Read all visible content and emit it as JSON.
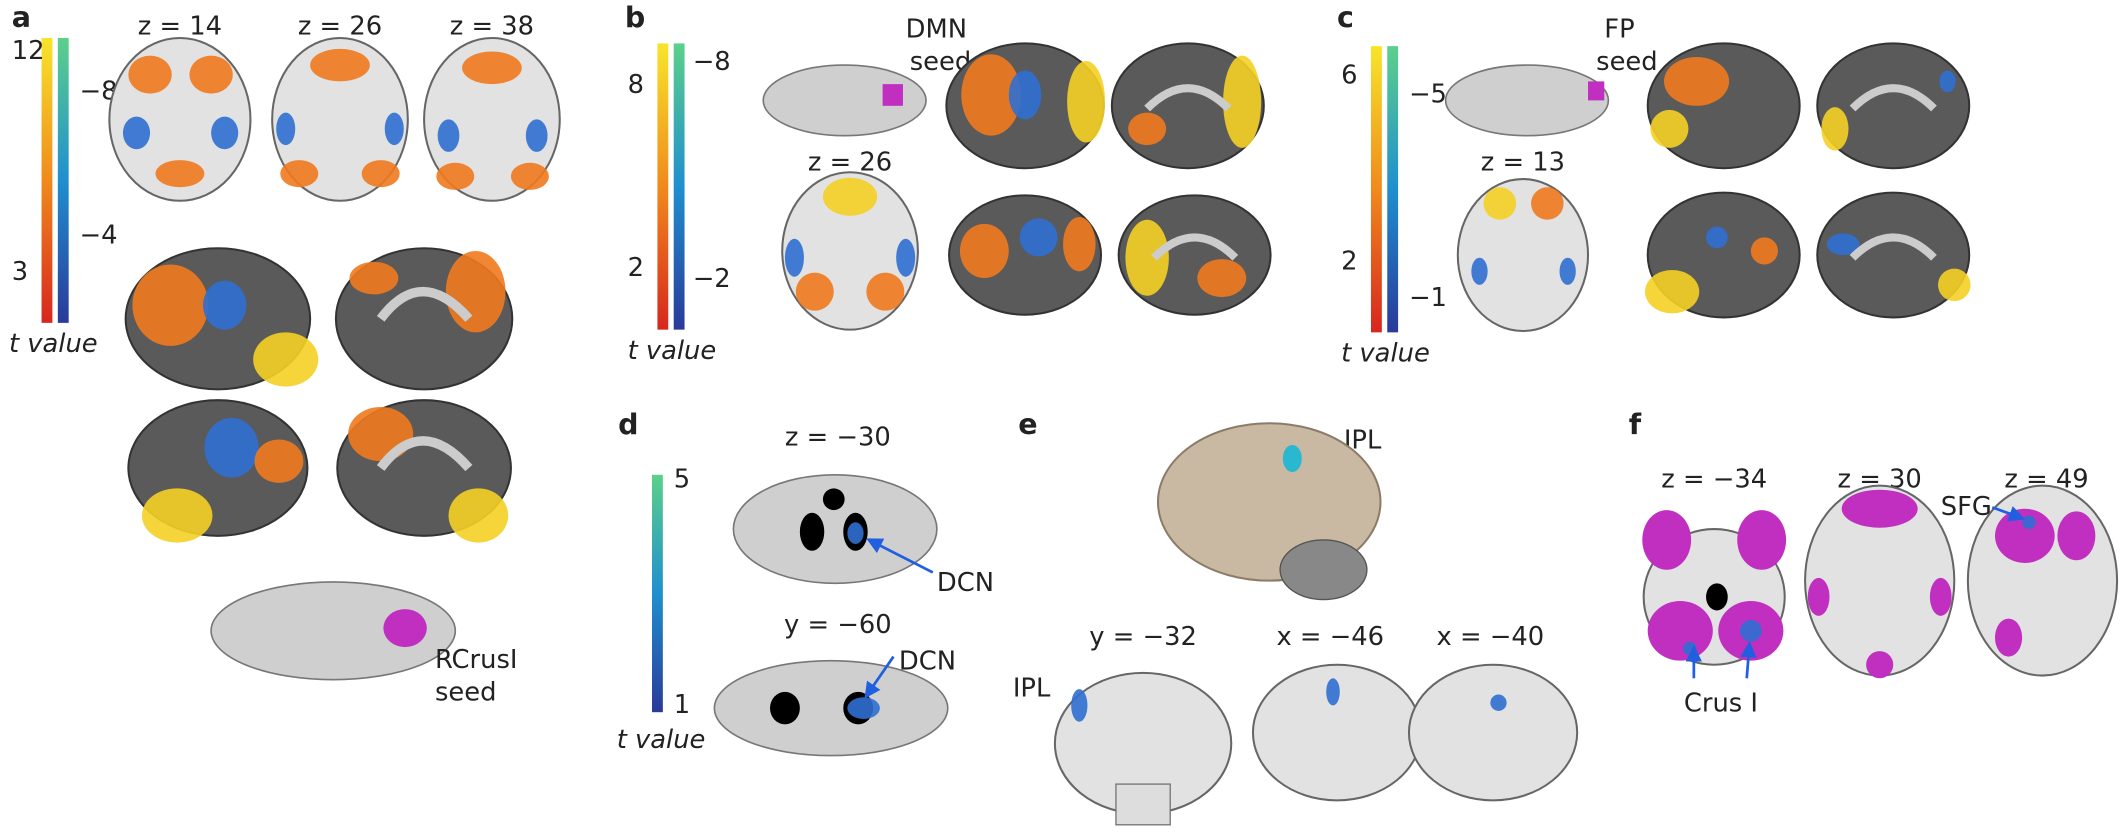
{
  "panels": [
    {
      "label": "a",
      "color_scale": {
        "warm_ticks": [
          "12",
          "3"
        ],
        "cool_ticks": [
          "−8",
          "−4"
        ],
        "title": "t value"
      },
      "slices": [
        "z = 14",
        "z = 26",
        "z = 38"
      ],
      "seed_label": [
        "RCrusI",
        "seed"
      ]
    },
    {
      "label": "b",
      "color_scale": {
        "warm_ticks": [
          "8",
          "2"
        ],
        "cool_ticks": [
          "−8",
          "−2"
        ],
        "title": "t value"
      },
      "seed_label": [
        "DMN",
        "seed"
      ],
      "slices": [
        "z = 26"
      ]
    },
    {
      "label": "c",
      "color_scale": {
        "warm_ticks": [
          "6",
          "2"
        ],
        "cool_ticks": [
          "−5",
          "−1"
        ],
        "title": "t value"
      },
      "seed_label": [
        "FP",
        "seed"
      ],
      "slices": [
        "z = 13"
      ]
    },
    {
      "label": "d",
      "color_scale": {
        "ticks": [
          "5",
          "1"
        ],
        "title": "t value"
      },
      "slices": [
        "z = −30",
        "y = −60"
      ],
      "annotations": [
        "DCN",
        "DCN"
      ]
    },
    {
      "label": "e",
      "slices": [
        "y = −32",
        "x = −46",
        "x = −40"
      ],
      "annotations": [
        "IPL",
        "IPL"
      ]
    },
    {
      "label": "f",
      "slices": [
        "z = −34",
        "z = 30",
        "z = 49"
      ],
      "annotations": [
        "SFG",
        "Crus I"
      ]
    }
  ]
}
